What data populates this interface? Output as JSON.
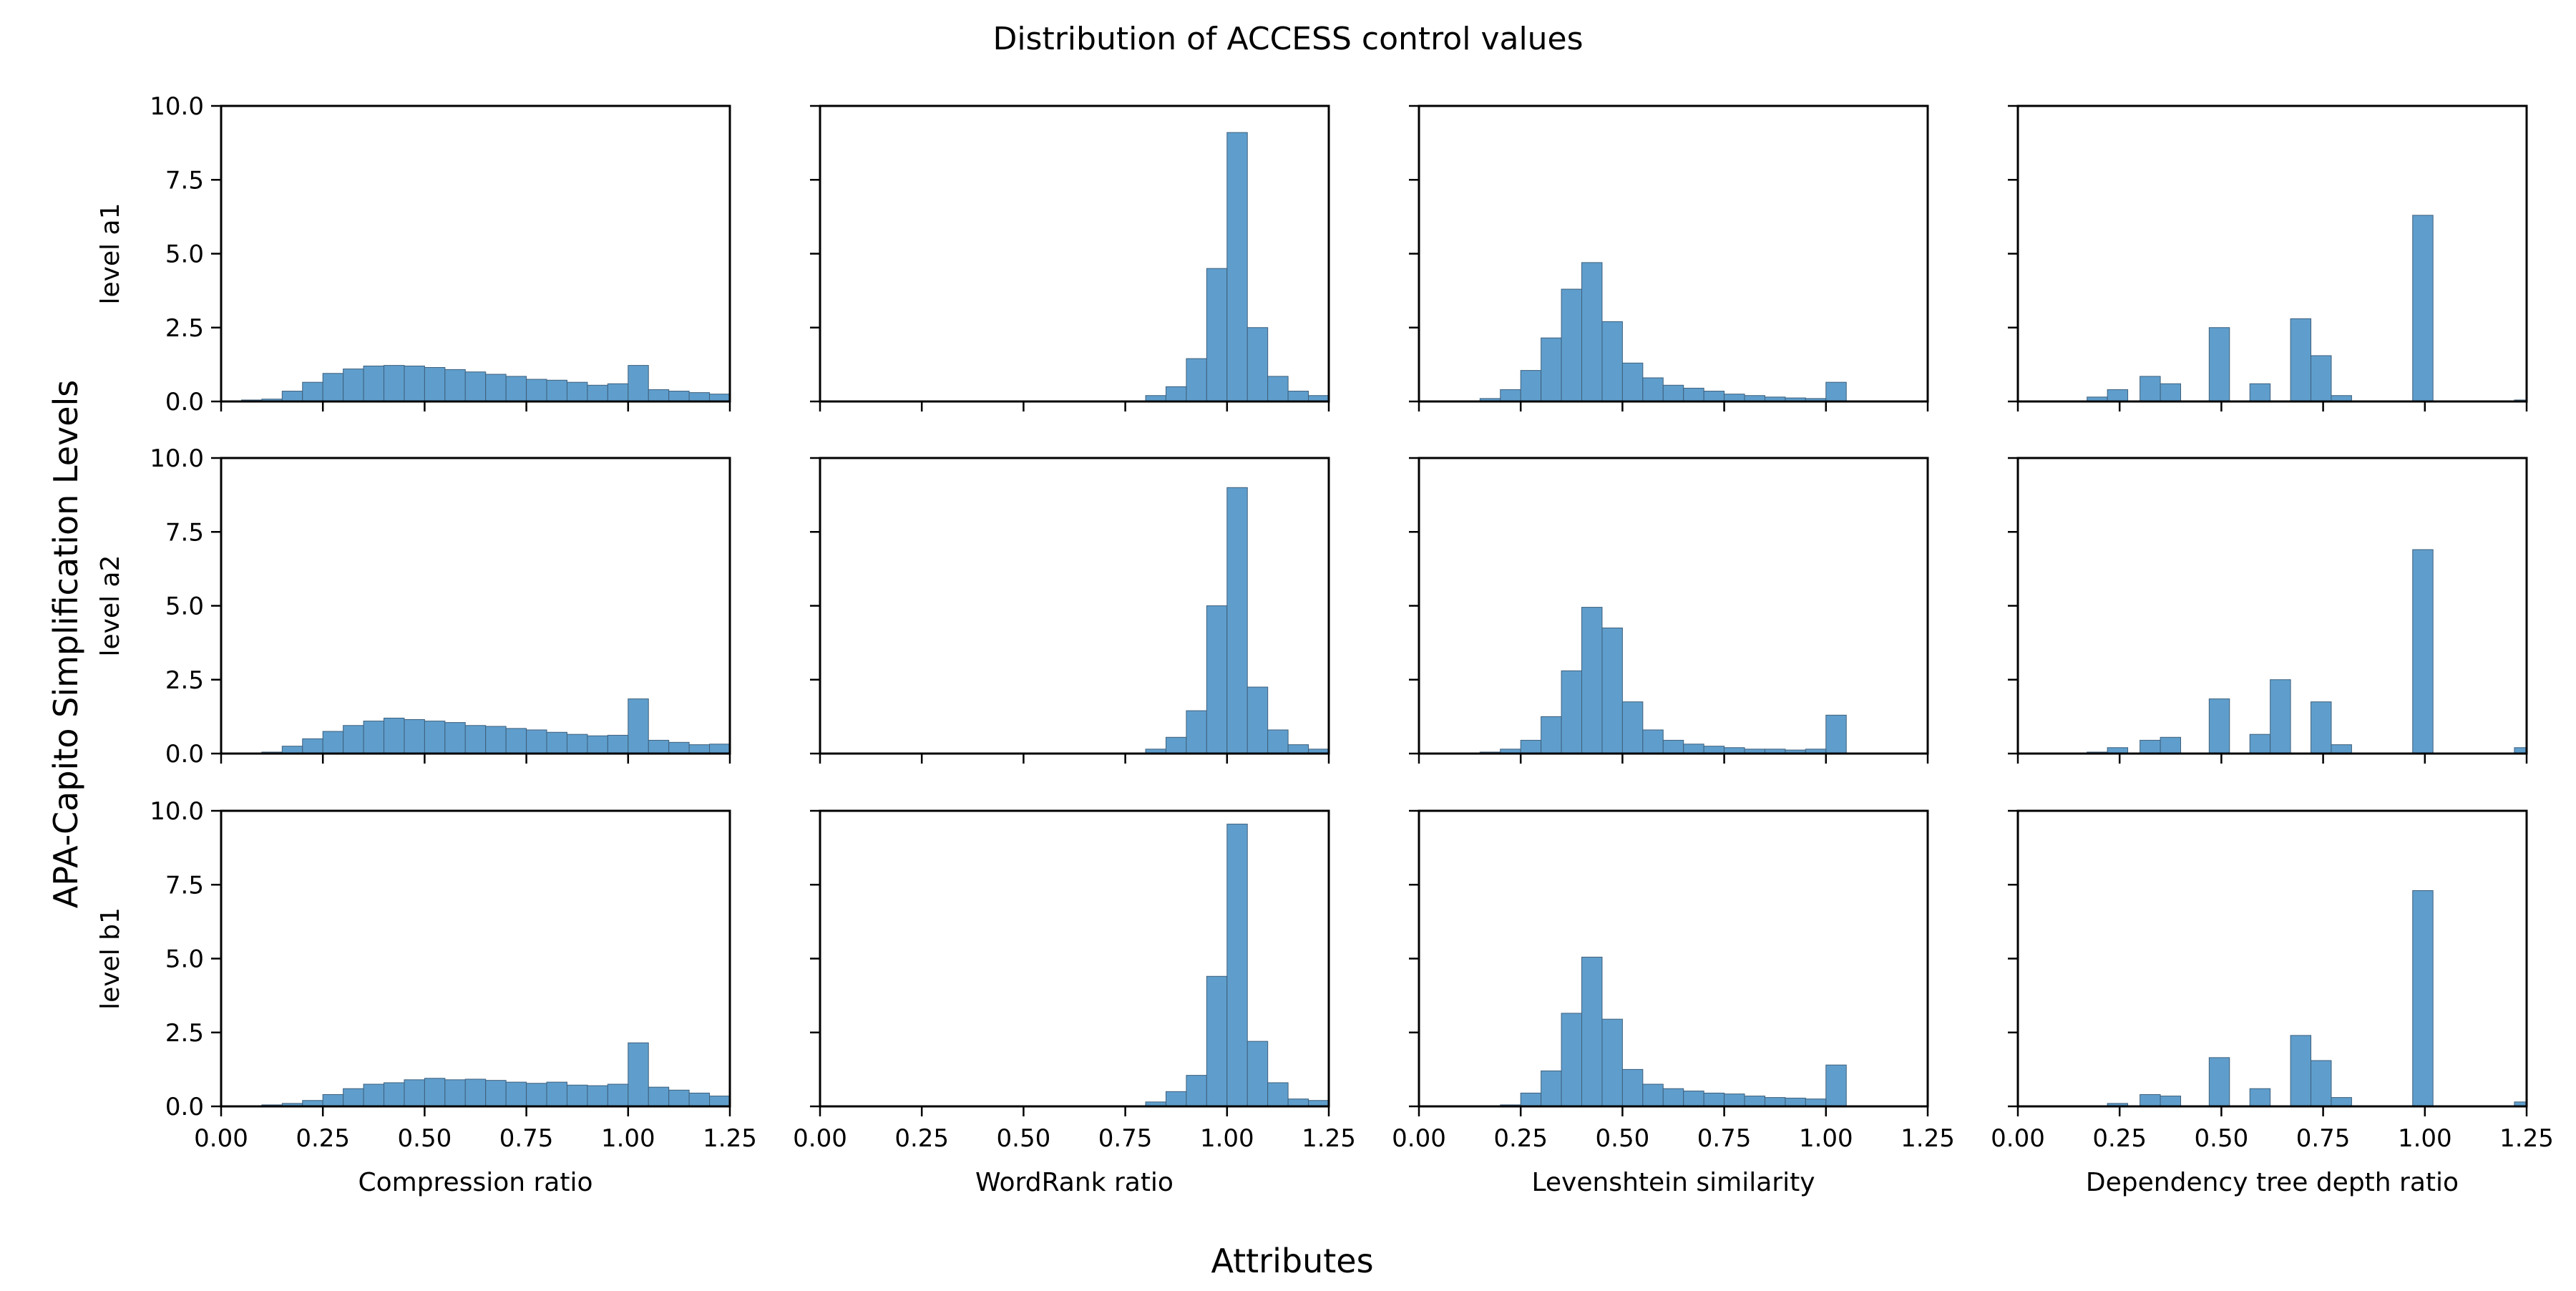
{
  "chart_data": {
    "type": "bar",
    "subtype": "histogram-grid",
    "title": "Distribution of ACCESS control values",
    "xlabel": "Attributes",
    "ylabel": "APA-Capito Simplification Levels",
    "bar_color": "#5f9ecc",
    "row_labels": [
      "level a1",
      "level a2",
      "level b1"
    ],
    "col_labels": [
      "Compression ratio",
      "WordRank ratio",
      "Levenshtein similarity",
      "Dependency tree depth ratio"
    ],
    "xlim": [
      0,
      1.25
    ],
    "ylim": [
      0,
      10
    ],
    "xticks": [
      "0.00",
      "0.25",
      "0.50",
      "0.75",
      "1.00",
      "1.25"
    ],
    "yticks": [
      "0.0",
      "2.5",
      "5.0",
      "7.5",
      "10.0"
    ],
    "bin_width": 0.05,
    "panels": [
      {
        "row": 0,
        "col": 0,
        "bins": [
          [
            0.05,
            0.05
          ],
          [
            0.1,
            0.08
          ],
          [
            0.15,
            0.35
          ],
          [
            0.2,
            0.65
          ],
          [
            0.25,
            0.95
          ],
          [
            0.3,
            1.1
          ],
          [
            0.35,
            1.2
          ],
          [
            0.4,
            1.22
          ],
          [
            0.45,
            1.2
          ],
          [
            0.5,
            1.15
          ],
          [
            0.55,
            1.08
          ],
          [
            0.6,
            1.0
          ],
          [
            0.65,
            0.92
          ],
          [
            0.7,
            0.85
          ],
          [
            0.75,
            0.75
          ],
          [
            0.8,
            0.72
          ],
          [
            0.85,
            0.65
          ],
          [
            0.9,
            0.55
          ],
          [
            0.95,
            0.6
          ],
          [
            1.0,
            1.22
          ],
          [
            1.05,
            0.4
          ],
          [
            1.1,
            0.35
          ],
          [
            1.15,
            0.3
          ],
          [
            1.2,
            0.25
          ]
        ]
      },
      {
        "row": 0,
        "col": 1,
        "bins": [
          [
            0.8,
            0.2
          ],
          [
            0.85,
            0.5
          ],
          [
            0.9,
            1.45
          ],
          [
            0.95,
            4.5
          ],
          [
            1.0,
            9.1
          ],
          [
            1.05,
            2.5
          ],
          [
            1.1,
            0.85
          ],
          [
            1.15,
            0.35
          ],
          [
            1.2,
            0.2
          ]
        ]
      },
      {
        "row": 0,
        "col": 2,
        "bins": [
          [
            0.15,
            0.1
          ],
          [
            0.2,
            0.4
          ],
          [
            0.25,
            1.05
          ],
          [
            0.3,
            2.15
          ],
          [
            0.35,
            3.8
          ],
          [
            0.4,
            4.7
          ],
          [
            0.45,
            2.7
          ],
          [
            0.5,
            1.3
          ],
          [
            0.55,
            0.8
          ],
          [
            0.6,
            0.55
          ],
          [
            0.65,
            0.45
          ],
          [
            0.7,
            0.35
          ],
          [
            0.75,
            0.25
          ],
          [
            0.8,
            0.2
          ],
          [
            0.85,
            0.15
          ],
          [
            0.9,
            0.12
          ],
          [
            0.95,
            0.1
          ],
          [
            1.0,
            0.65
          ]
        ]
      },
      {
        "row": 0,
        "col": 3,
        "bins": [
          [
            0.17,
            0.15
          ],
          [
            0.22,
            0.4
          ],
          [
            0.3,
            0.85
          ],
          [
            0.35,
            0.6
          ],
          [
            0.47,
            2.5
          ],
          [
            0.57,
            0.6
          ],
          [
            0.67,
            2.8
          ],
          [
            0.72,
            1.55
          ],
          [
            0.77,
            0.2
          ],
          [
            0.97,
            6.3
          ],
          [
            1.22,
            0.05
          ]
        ]
      },
      {
        "row": 1,
        "col": 0,
        "bins": [
          [
            0.05,
            0.02
          ],
          [
            0.1,
            0.05
          ],
          [
            0.15,
            0.25
          ],
          [
            0.2,
            0.5
          ],
          [
            0.25,
            0.75
          ],
          [
            0.3,
            0.95
          ],
          [
            0.35,
            1.1
          ],
          [
            0.4,
            1.2
          ],
          [
            0.45,
            1.15
          ],
          [
            0.5,
            1.1
          ],
          [
            0.55,
            1.05
          ],
          [
            0.6,
            0.95
          ],
          [
            0.65,
            0.92
          ],
          [
            0.7,
            0.85
          ],
          [
            0.75,
            0.8
          ],
          [
            0.8,
            0.72
          ],
          [
            0.85,
            0.65
          ],
          [
            0.9,
            0.6
          ],
          [
            0.95,
            0.62
          ],
          [
            1.0,
            1.85
          ],
          [
            1.05,
            0.45
          ],
          [
            1.1,
            0.38
          ],
          [
            1.15,
            0.3
          ],
          [
            1.2,
            0.32
          ]
        ]
      },
      {
        "row": 1,
        "col": 1,
        "bins": [
          [
            0.8,
            0.15
          ],
          [
            0.85,
            0.55
          ],
          [
            0.9,
            1.45
          ],
          [
            0.95,
            5.0
          ],
          [
            1.0,
            9.0
          ],
          [
            1.05,
            2.25
          ],
          [
            1.1,
            0.8
          ],
          [
            1.15,
            0.3
          ],
          [
            1.2,
            0.15
          ]
        ]
      },
      {
        "row": 1,
        "col": 2,
        "bins": [
          [
            0.15,
            0.05
          ],
          [
            0.2,
            0.15
          ],
          [
            0.25,
            0.45
          ],
          [
            0.3,
            1.25
          ],
          [
            0.35,
            2.8
          ],
          [
            0.4,
            4.95
          ],
          [
            0.45,
            4.25
          ],
          [
            0.5,
            1.75
          ],
          [
            0.55,
            0.8
          ],
          [
            0.6,
            0.45
          ],
          [
            0.65,
            0.32
          ],
          [
            0.7,
            0.25
          ],
          [
            0.75,
            0.2
          ],
          [
            0.8,
            0.15
          ],
          [
            0.85,
            0.15
          ],
          [
            0.9,
            0.12
          ],
          [
            0.95,
            0.15
          ],
          [
            1.0,
            1.3
          ]
        ]
      },
      {
        "row": 1,
        "col": 3,
        "bins": [
          [
            0.17,
            0.05
          ],
          [
            0.22,
            0.2
          ],
          [
            0.3,
            0.45
          ],
          [
            0.35,
            0.55
          ],
          [
            0.47,
            1.85
          ],
          [
            0.57,
            0.65
          ],
          [
            0.62,
            2.5
          ],
          [
            0.72,
            1.75
          ],
          [
            0.77,
            0.3
          ],
          [
            0.97,
            6.9
          ],
          [
            1.22,
            0.2
          ]
        ]
      },
      {
        "row": 2,
        "col": 0,
        "bins": [
          [
            0.05,
            0.02
          ],
          [
            0.1,
            0.05
          ],
          [
            0.15,
            0.1
          ],
          [
            0.2,
            0.2
          ],
          [
            0.25,
            0.4
          ],
          [
            0.3,
            0.6
          ],
          [
            0.35,
            0.75
          ],
          [
            0.4,
            0.8
          ],
          [
            0.45,
            0.9
          ],
          [
            0.5,
            0.95
          ],
          [
            0.55,
            0.9
          ],
          [
            0.6,
            0.92
          ],
          [
            0.65,
            0.88
          ],
          [
            0.7,
            0.82
          ],
          [
            0.75,
            0.78
          ],
          [
            0.8,
            0.82
          ],
          [
            0.85,
            0.72
          ],
          [
            0.9,
            0.7
          ],
          [
            0.95,
            0.75
          ],
          [
            1.0,
            2.15
          ],
          [
            1.05,
            0.65
          ],
          [
            1.1,
            0.55
          ],
          [
            1.15,
            0.45
          ],
          [
            1.2,
            0.35
          ]
        ]
      },
      {
        "row": 2,
        "col": 1,
        "bins": [
          [
            0.8,
            0.15
          ],
          [
            0.85,
            0.5
          ],
          [
            0.9,
            1.05
          ],
          [
            0.95,
            4.4
          ],
          [
            1.0,
            9.55
          ],
          [
            1.05,
            2.2
          ],
          [
            1.1,
            0.8
          ],
          [
            1.15,
            0.25
          ],
          [
            1.2,
            0.2
          ]
        ]
      },
      {
        "row": 2,
        "col": 2,
        "bins": [
          [
            0.15,
            0.02
          ],
          [
            0.2,
            0.05
          ],
          [
            0.25,
            0.45
          ],
          [
            0.3,
            1.2
          ],
          [
            0.35,
            3.15
          ],
          [
            0.4,
            5.05
          ],
          [
            0.45,
            2.95
          ],
          [
            0.5,
            1.25
          ],
          [
            0.55,
            0.75
          ],
          [
            0.6,
            0.6
          ],
          [
            0.65,
            0.52
          ],
          [
            0.7,
            0.45
          ],
          [
            0.75,
            0.42
          ],
          [
            0.8,
            0.35
          ],
          [
            0.85,
            0.3
          ],
          [
            0.9,
            0.28
          ],
          [
            0.95,
            0.25
          ],
          [
            1.0,
            1.4
          ]
        ]
      },
      {
        "row": 2,
        "col": 3,
        "bins": [
          [
            0.17,
            0.02
          ],
          [
            0.22,
            0.1
          ],
          [
            0.3,
            0.4
          ],
          [
            0.35,
            0.35
          ],
          [
            0.47,
            1.65
          ],
          [
            0.57,
            0.6
          ],
          [
            0.67,
            2.4
          ],
          [
            0.72,
            1.55
          ],
          [
            0.77,
            0.3
          ],
          [
            0.97,
            7.3
          ],
          [
            1.22,
            0.15
          ]
        ]
      }
    ]
  }
}
